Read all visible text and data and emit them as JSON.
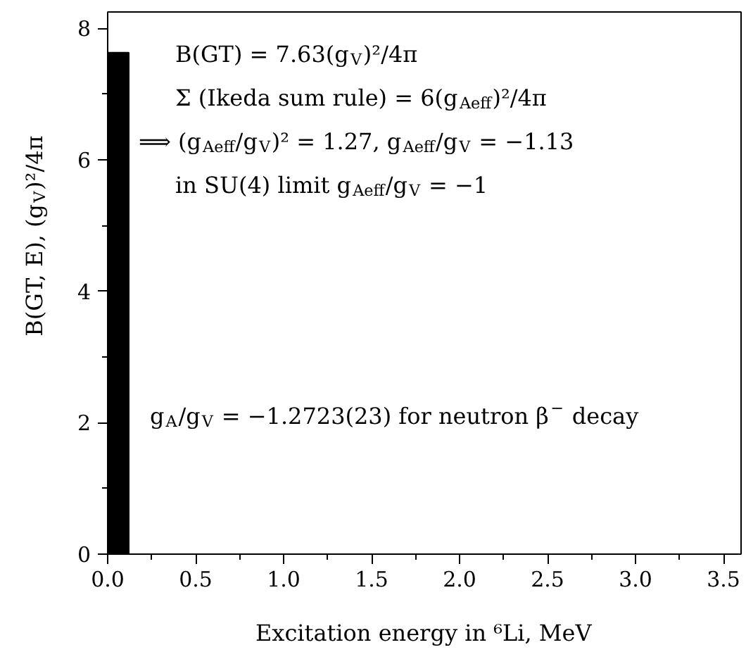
{
  "chart_data": {
    "type": "histogram",
    "bins": [
      0,
      0.12
    ],
    "values": [
      7.63
    ],
    "color": "#000000",
    "xlabel": "Excitation energy in ⁶Li, MeV",
    "ylabel": "B(GT, E), (g$_{V}$)²/4π",
    "xlim": [
      0,
      3.6
    ],
    "ylim": [
      0,
      8.25
    ],
    "xticks": [
      {
        "value": 0,
        "label": "0.0"
      },
      {
        "value": 0.25,
        "label": null
      },
      {
        "value": 0.5,
        "label": "0.5"
      },
      {
        "value": 0.75,
        "label": null
      },
      {
        "value": 1,
        "label": "1.0"
      },
      {
        "value": 1.25,
        "label": null
      },
      {
        "value": 1.5,
        "label": "1.5"
      },
      {
        "value": 1.75,
        "label": null
      },
      {
        "value": 2,
        "label": "2.0"
      },
      {
        "value": 2.25,
        "label": null
      },
      {
        "value": 2.5,
        "label": "2.5"
      },
      {
        "value": 2.75,
        "label": null
      },
      {
        "value": 3,
        "label": "3.0"
      },
      {
        "value": 3.25,
        "label": null
      },
      {
        "value": 3.5,
        "label": "3.5"
      }
    ],
    "yticks": [
      0,
      {
        "value": 1,
        "label": null
      },
      2,
      {
        "value": 3,
        "label": null
      },
      4,
      {
        "value": 5,
        "label": null
      },
      6,
      {
        "value": 7,
        "label": null
      },
      8
    ],
    "grid": false,
    "annotations": [
      "B(GT) = 7.63(g$_{V}$)²/4π",
      "Σ (Ikeda sum rule) = 6(g$_{Aeff}$)²/4π",
      "⟹ (g$_{Aeff}$/g$_{V}$)² = 1.27, g$_{Aeff}$/g$_{V}$ = −1.13",
      "in SU(4) limit g$_{Aeff}$/g$_{V}$ = −1",
      "g$_{A}$/g$_{V}$ = −1.2723(23) for neutron β$^{−}$ decay"
    ]
  }
}
